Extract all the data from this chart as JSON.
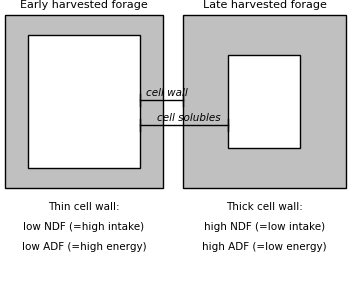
{
  "title_left": "Early harvested forage",
  "title_right": "Late harvested forage",
  "label_cell_wall": "cell wall",
  "label_cell_solubles": "cell solubles",
  "left_label1": "Thin cell wall:",
  "left_label2": "low NDF (=high intake)",
  "left_label3": "low ADF (=high energy)",
  "right_label1": "Thick cell wall:",
  "right_label2": "high NDF (=low intake)",
  "right_label3": "high ADF (=low energy)",
  "bg_color": "#ffffff",
  "gray_color": "#c0c0c0",
  "box_edge_color": "#000000",
  "font_size_title": 8,
  "font_size_label": 7.5,
  "font_size_annot": 7.5
}
